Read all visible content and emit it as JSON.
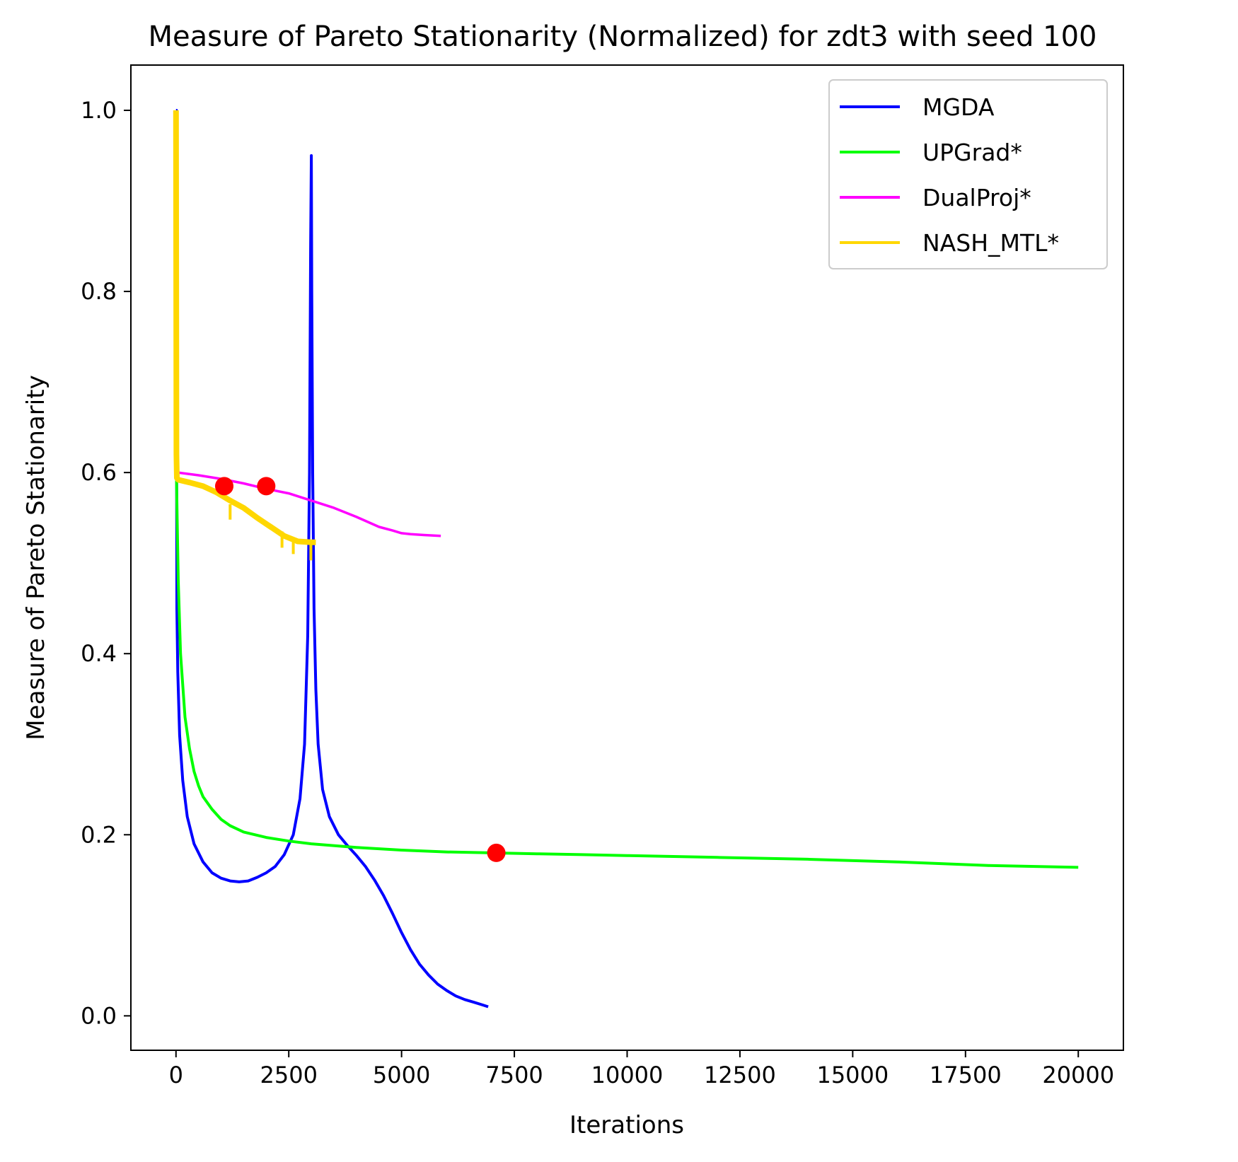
{
  "chart_data": {
    "type": "line",
    "title": "Measure of Pareto Stationarity (Normalized) for zdt3 with seed 100",
    "xlabel": "Iterations",
    "ylabel": "Measure of Pareto Stationarity",
    "xlim": [
      -1000,
      21000
    ],
    "ylim": [
      -0.038,
      1.05
    ],
    "xticks": [
      0,
      2500,
      5000,
      7500,
      10000,
      12500,
      15000,
      17500,
      20000
    ],
    "xtick_labels": [
      "0",
      "2500",
      "5000",
      "7500",
      "10000",
      "12500",
      "15000",
      "17500",
      "20000"
    ],
    "yticks": [
      0.0,
      0.2,
      0.4,
      0.6,
      0.8,
      1.0
    ],
    "ytick_labels": [
      "0.0",
      "0.2",
      "0.4",
      "0.6",
      "0.8",
      "1.0"
    ],
    "grid": false,
    "legend_position": "top-right",
    "series": [
      {
        "name": "MGDA",
        "color": "#0000ff",
        "x": [
          0,
          10,
          15,
          20,
          40,
          80,
          150,
          250,
          400,
          600,
          800,
          1000,
          1200,
          1400,
          1600,
          1800,
          2000,
          2200,
          2400,
          2600,
          2750,
          2850,
          2920,
          2960,
          2985,
          3000,
          3010,
          3030,
          3060,
          3100,
          3150,
          3250,
          3400,
          3600,
          3800,
          4000,
          4200,
          4400,
          4600,
          4800,
          5000,
          5200,
          5400,
          5600,
          5800,
          6000,
          6200,
          6400,
          6600,
          6800,
          6920
        ],
        "y": [
          1.0,
          1.0,
          0.6,
          0.45,
          0.38,
          0.31,
          0.26,
          0.22,
          0.19,
          0.17,
          0.158,
          0.152,
          0.149,
          0.148,
          0.149,
          0.153,
          0.158,
          0.165,
          0.178,
          0.2,
          0.24,
          0.3,
          0.42,
          0.6,
          0.85,
          0.95,
          0.8,
          0.6,
          0.45,
          0.36,
          0.3,
          0.25,
          0.22,
          0.2,
          0.188,
          0.177,
          0.165,
          0.15,
          0.133,
          0.113,
          0.092,
          0.073,
          0.057,
          0.045,
          0.035,
          0.028,
          0.022,
          0.018,
          0.015,
          0.012,
          0.01
        ]
      },
      {
        "name": "UPGrad*",
        "color": "#00ff00",
        "x": [
          0,
          10,
          25,
          50,
          100,
          200,
          300,
          400,
          500,
          600,
          800,
          1000,
          1200,
          1500,
          2000,
          2500,
          3000,
          4000,
          5000,
          6000,
          7000,
          8000,
          9000,
          10000,
          12000,
          14000,
          16000,
          18000,
          20000
        ],
        "y": [
          1.0,
          0.6,
          0.55,
          0.48,
          0.4,
          0.33,
          0.295,
          0.27,
          0.254,
          0.242,
          0.228,
          0.217,
          0.21,
          0.203,
          0.197,
          0.193,
          0.19,
          0.186,
          0.183,
          0.181,
          0.18,
          0.179,
          0.178,
          0.177,
          0.175,
          0.173,
          0.17,
          0.166,
          0.164
        ]
      },
      {
        "name": "DualProj*",
        "color": "#ff00ff",
        "x": [
          0,
          10,
          20,
          40,
          500,
          1000,
          1500,
          2000,
          2500,
          3000,
          3500,
          4000,
          4500,
          4800,
          5000,
          5200,
          5500,
          5870
        ],
        "y": [
          1.0,
          0.61,
          0.6,
          0.6,
          0.597,
          0.593,
          0.588,
          0.582,
          0.577,
          0.569,
          0.561,
          0.551,
          0.54,
          0.536,
          0.533,
          0.532,
          0.531,
          0.53
        ]
      },
      {
        "name": "NASH_MTL*",
        "color": "#ffd700",
        "x": [
          0,
          10,
          20,
          50,
          300,
          600,
          900,
          1200,
          1500,
          1800,
          2100,
          2400,
          2700,
          3000,
          3100
        ],
        "y": [
          1.0,
          0.62,
          0.594,
          0.592,
          0.589,
          0.585,
          0.578,
          0.569,
          0.561,
          0.55,
          0.54,
          0.53,
          0.524,
          0.523,
          0.523
        ]
      }
    ],
    "nash_spikes": [
      {
        "x": 1200,
        "y_top": 0.565,
        "y_bottom": 0.548
      },
      {
        "x": 2350,
        "y_top": 0.535,
        "y_bottom": 0.517
      },
      {
        "x": 2600,
        "y_top": 0.528,
        "y_bottom": 0.51
      },
      {
        "x": 2990,
        "y_top": 0.526,
        "y_bottom": 0.503
      }
    ],
    "markers": [
      {
        "x": 1070,
        "y": 0.585,
        "color": "#ff0000"
      },
      {
        "x": 2000,
        "y": 0.585,
        "color": "#ff0000"
      },
      {
        "x": 7100,
        "y": 0.18,
        "color": "#ff0000"
      }
    ]
  }
}
